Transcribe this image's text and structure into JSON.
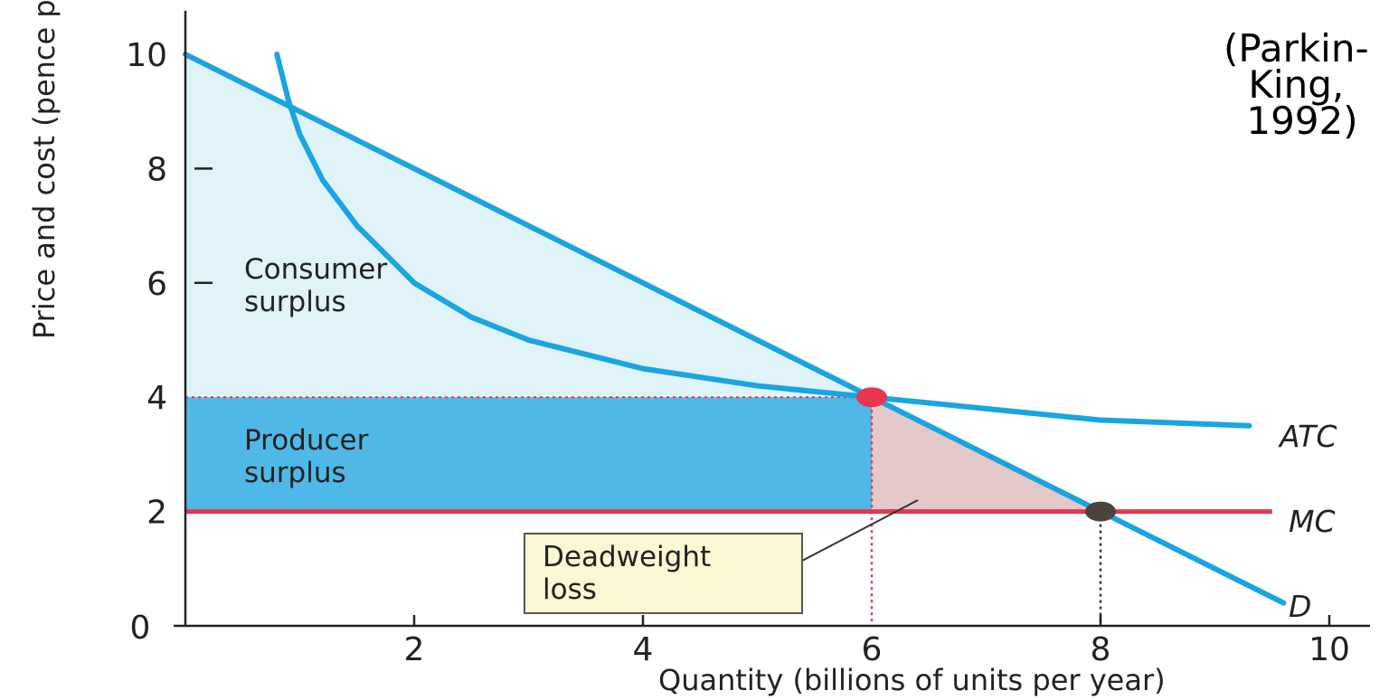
{
  "chart_data": {
    "type": "line",
    "title": "",
    "xlabel": "Quantity (billions of units per year)",
    "ylabel": "Price and cost (pence per unit)",
    "xlim": [
      0,
      10
    ],
    "ylim": [
      0,
      10
    ],
    "x_ticks": [
      "0",
      "2",
      "4",
      "6",
      "8",
      "10"
    ],
    "y_ticks": [
      "0",
      "2",
      "4",
      "6",
      "8",
      "10"
    ],
    "series": [
      {
        "name": "D",
        "x": [
          0,
          9.6
        ],
        "y": [
          10,
          0.4
        ]
      },
      {
        "name": "ATC",
        "x": [
          0.8,
          0.9,
          1.0,
          1.2,
          1.5,
          2.0,
          2.5,
          3.0,
          4.0,
          5.0,
          6.0,
          7.0,
          8.0,
          9.3
        ],
        "y": [
          10,
          9.2,
          8.6,
          7.8,
          7.0,
          6.0,
          5.4,
          5.0,
          4.5,
          4.2,
          4.0,
          3.8,
          3.6,
          3.5
        ]
      },
      {
        "name": "MC",
        "x": [
          0,
          9.5
        ],
        "y": [
          2,
          2
        ]
      }
    ],
    "points": [
      {
        "x": 6,
        "y": 4,
        "color": "#e8364e"
      },
      {
        "x": 8,
        "y": 2,
        "color": "#4a4440"
      }
    ],
    "regions": [
      {
        "label_lines": [
          "Consumer",
          "surplus"
        ],
        "color": "#dff3f8"
      },
      {
        "label_lines": [
          "Producer",
          "surplus"
        ],
        "color": "#4fb8e6"
      },
      {
        "label_lines": [
          "Deadweight",
          "loss"
        ],
        "color": "#e4c9c8"
      }
    ],
    "highlighted_x_tick": "6",
    "highlighted_y_tick": "4",
    "colors": {
      "curve": "#1aa5e0",
      "mc": "#e8364e",
      "highlight_text": "#c8364a",
      "callout_bg": "#fbf7d2"
    },
    "grid": false,
    "citation_lines": [
      "(Parkin-",
      "King,",
      "1992)"
    ]
  }
}
